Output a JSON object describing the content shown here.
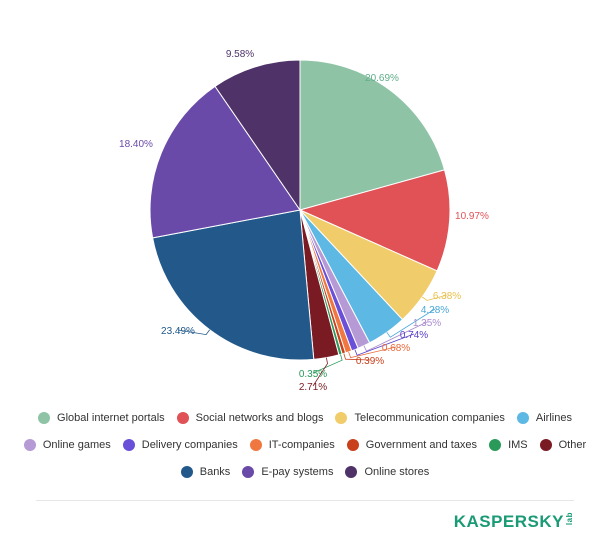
{
  "chart_data": {
    "type": "pie",
    "title": "",
    "slices": [
      {
        "label": "Global internet portals",
        "value": 20.69,
        "value_label": "20.69%",
        "color": "#8ec3a6",
        "label_color": "#5fae8a"
      },
      {
        "label": "Social networks and blogs",
        "value": 10.97,
        "value_label": "10.97%",
        "color": "#e05256",
        "label_color": "#e05256"
      },
      {
        "label": "Telecommunication companies",
        "value": 6.38,
        "value_label": "6.38%",
        "color": "#f0cd6a",
        "label_color": "#e8c04a"
      },
      {
        "label": "Airlines",
        "value": 4.28,
        "value_label": "4.28%",
        "color": "#5db8e4",
        "label_color": "#4aa8d8"
      },
      {
        "label": "Online games",
        "value": 1.35,
        "value_label": "1.35%",
        "color": "#b59ad6",
        "label_color": "#a98bcf"
      },
      {
        "label": "Delivery companies",
        "value": 0.74,
        "value_label": "0.74%",
        "color": "#6a4fd8",
        "label_color": "#5a40c8"
      },
      {
        "label": "IT-companies",
        "value": 0.68,
        "value_label": "0.68%",
        "color": "#f07840",
        "label_color": "#e8693a"
      },
      {
        "label": "Government and taxes",
        "value": 0.39,
        "value_label": "0.39%",
        "color": "#c8401c",
        "label_color": "#c8401c"
      },
      {
        "label": "IMS",
        "value": 0.35,
        "value_label": "0.35%",
        "color": "#2a9a5a",
        "label_color": "#2a9a5a"
      },
      {
        "label": "Other",
        "value": 2.71,
        "value_label": "2.71%",
        "color": "#7a1a22",
        "label_color": "#7a1a22"
      },
      {
        "label": "Banks",
        "value": 23.49,
        "value_label": "23.49%",
        "color": "#22598a",
        "label_color": "#22598a"
      },
      {
        "label": "E-pay systems",
        "value": 18.4,
        "value_label": "18.40%",
        "color": "#6a4aa8",
        "label_color": "#6a4aa8"
      },
      {
        "label": "Online stores",
        "value": 9.58,
        "value_label": "9.58%",
        "color": "#4e3268",
        "label_color": "#4e3268"
      }
    ],
    "legend_placement": "bottom"
  },
  "legend_rows": [
    [
      0,
      1,
      2,
      3
    ],
    [
      4,
      5,
      6,
      7,
      8,
      9
    ],
    [
      10,
      11,
      12
    ]
  ],
  "logo": {
    "text": "KASPERSKY",
    "suffix": "lab"
  }
}
